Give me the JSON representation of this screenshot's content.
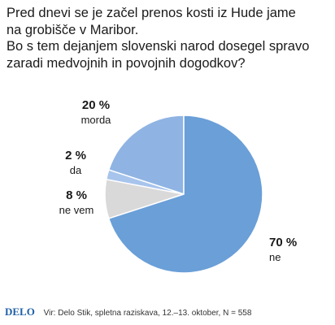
{
  "title_lines": [
    "Pred dnevi se je začel prenos kosti iz Hude jame",
    "na grobišče v Maribor.",
    "Bo s tem dejanjem slovenski narod dosegel spravo",
    "zaradi medvojnih in povojnih dogodkov?"
  ],
  "chart_data": {
    "type": "pie",
    "start_angle_deg": 270,
    "direction": "counterclockwise",
    "slices": [
      {
        "label": "morda",
        "value": 20,
        "value_label": "20 %",
        "color": "#8fb4e3"
      },
      {
        "label": "da",
        "value": 2,
        "value_label": "2 %",
        "color": "#a7c4ec"
      },
      {
        "label": "ne vem",
        "value": 8,
        "value_label": "8 %",
        "color": "#d9d9d9"
      },
      {
        "label": "ne",
        "value": 70,
        "value_label": "70 %",
        "color": "#6a9fd8"
      }
    ]
  },
  "footer": {
    "logo": "DELO",
    "source": "Vir: Delo Stik, spletna raziskava, 12.–13. oktober, N = 558"
  }
}
